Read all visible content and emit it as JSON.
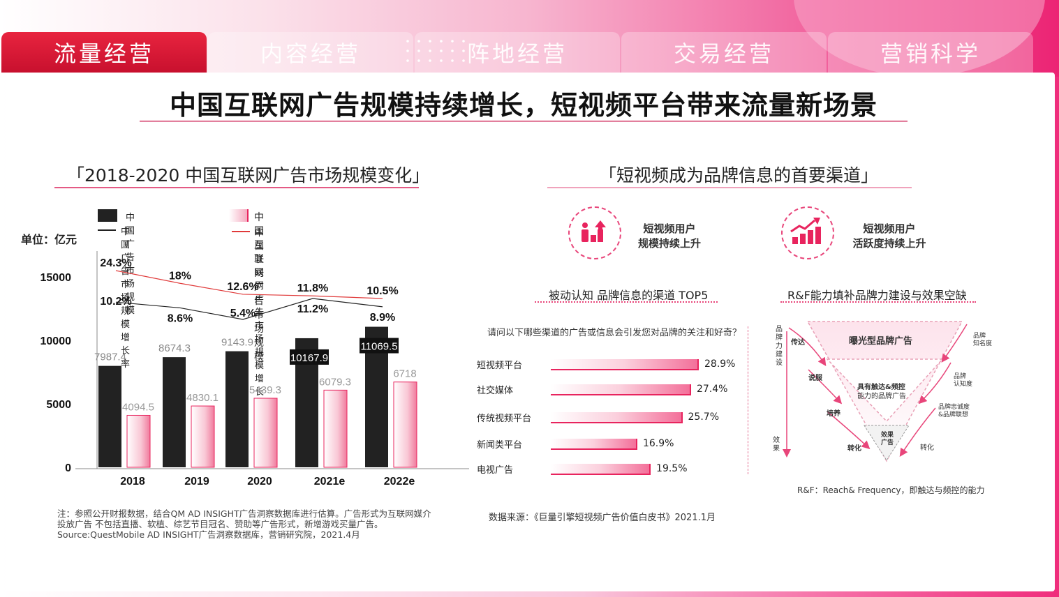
{
  "tabs": [
    {
      "label": "流量经营",
      "active": true
    },
    {
      "label": "内容经营",
      "active": false
    },
    {
      "label": "阵地经营",
      "active": false
    },
    {
      "label": "交易经营",
      "active": false
    },
    {
      "label": "营销科学",
      "active": false
    }
  ],
  "main_title": "中国互联网广告规模持续增长，短视频平台带来流量新场景",
  "left": {
    "section_title": "「2018-2020 中国互联网广告市场规模变化」",
    "unit": "单位：亿元",
    "note": "注：参照公开财报数据，结合QM AD INSIGHT广告洞察数据库进行估算。广告形式为互联网媒介投放广告 不包括直播、软植、综艺节目冠名、赞助等广告形式，新增游戏买量广告。Source:QuestMobile AD INSIGHT广告洞察数据库，营销研究院，2021.4月"
  },
  "right": {
    "section_title": "「短视频成为品牌信息的首要渠道」",
    "feature1": {
      "line1": "短视频用户",
      "line2": "规模持续上升"
    },
    "feature2": {
      "line1": "短视频用户",
      "line2": "活跃度持续上升"
    },
    "top5_title": "被动认知 品牌信息的渠道 TOP5",
    "rf_title": "R&F能力填补品牌力建设与效果空缺",
    "question": "请问以下哪些渠道的广告或信息会引发您对品牌的关注和好奇？",
    "source": "数据来源：《巨量引擎短视频广告价值白皮书》2021.1月",
    "funnel": {
      "top": "曝光型品牌广告",
      "mid1": "具有触达&频控",
      "mid2": "能力的品牌广告",
      "bottom1": "效果",
      "bottom2": "广告",
      "left_axis": "品牌力建设",
      "left_axis_bottom": "效果",
      "left_labels": [
        "传达",
        "说服",
        "培养",
        "转化"
      ],
      "right_labels": [
        "品牌\n知名度",
        "品牌\n认知度",
        "品牌忠诚度\n&品牌联想",
        "转化"
      ],
      "right_labels_flat": {
        "r1a": "品牌",
        "r1b": "知名度",
        "r2a": "品牌",
        "r2b": "认知度",
        "r3a": "品牌忠诚度",
        "r3b": "&品牌联想",
        "r4": "转化"
      }
    },
    "rf_note": "R&F：Reach& Frequency，即触达与频控的能力"
  },
  "colors": {
    "accent": "#e8245e",
    "dark_bar": "#222222",
    "red_line": "#e03a3a",
    "tab_active": "#d41a35"
  },
  "chart_data": [
    {
      "type": "bar",
      "categories": [
        "2018",
        "2019",
        "2020",
        "2021e",
        "2022e"
      ],
      "series": [
        {
          "name": "中国广告市场规模",
          "kind": "bar",
          "color": "#222222",
          "values": [
            7987.4,
            8674.3,
            9143.9,
            10167.9,
            11069.5
          ]
        },
        {
          "name": "中国互联网广告市场规模",
          "kind": "bar",
          "color": "#f2a3b8",
          "values": [
            4094.5,
            4830.1,
            5439.3,
            6079.3,
            6718
          ]
        },
        {
          "name": "中国广告市场规模增长率",
          "kind": "line",
          "color": "#222222",
          "values": [
            10.2,
            8.6,
            5.4,
            11.2,
            8.9
          ],
          "labels": [
            "10.2%",
            "8.6%",
            "5.4%",
            "11.2%",
            "8.9%"
          ]
        },
        {
          "name": "中国互联网广告市场规模增长率",
          "kind": "line",
          "color": "#e03a3a",
          "values": [
            24.3,
            18,
            12.6,
            11.8,
            10.5
          ],
          "labels": [
            "24.3%",
            "18%",
            "12.6%",
            "11.8%",
            "10.5%"
          ]
        }
      ],
      "yticks": [
        "0",
        "5000",
        "10000",
        "15000"
      ],
      "ylim": [
        0,
        15000
      ],
      "ylabel": "单位：亿元",
      "value_labels": [
        "7987.4",
        "8674.3",
        "9143.9",
        "10167.9",
        "11069.5"
      ],
      "value_labels2": [
        "4094.5",
        "4830.1",
        "5439.3",
        "6079.3",
        "6718"
      ]
    },
    {
      "type": "bar",
      "orientation": "horizontal",
      "title": "被动认知 品牌信息的渠道 TOP5",
      "categories": [
        "短视频平台",
        "社交媒体",
        "传统视频平台",
        "新闻类平台",
        "电视广告"
      ],
      "values": [
        28.9,
        27.4,
        25.7,
        16.9,
        19.5
      ],
      "labels": [
        "28.9%",
        "27.4%",
        "25.7%",
        "16.9%",
        "19.5%"
      ]
    }
  ]
}
